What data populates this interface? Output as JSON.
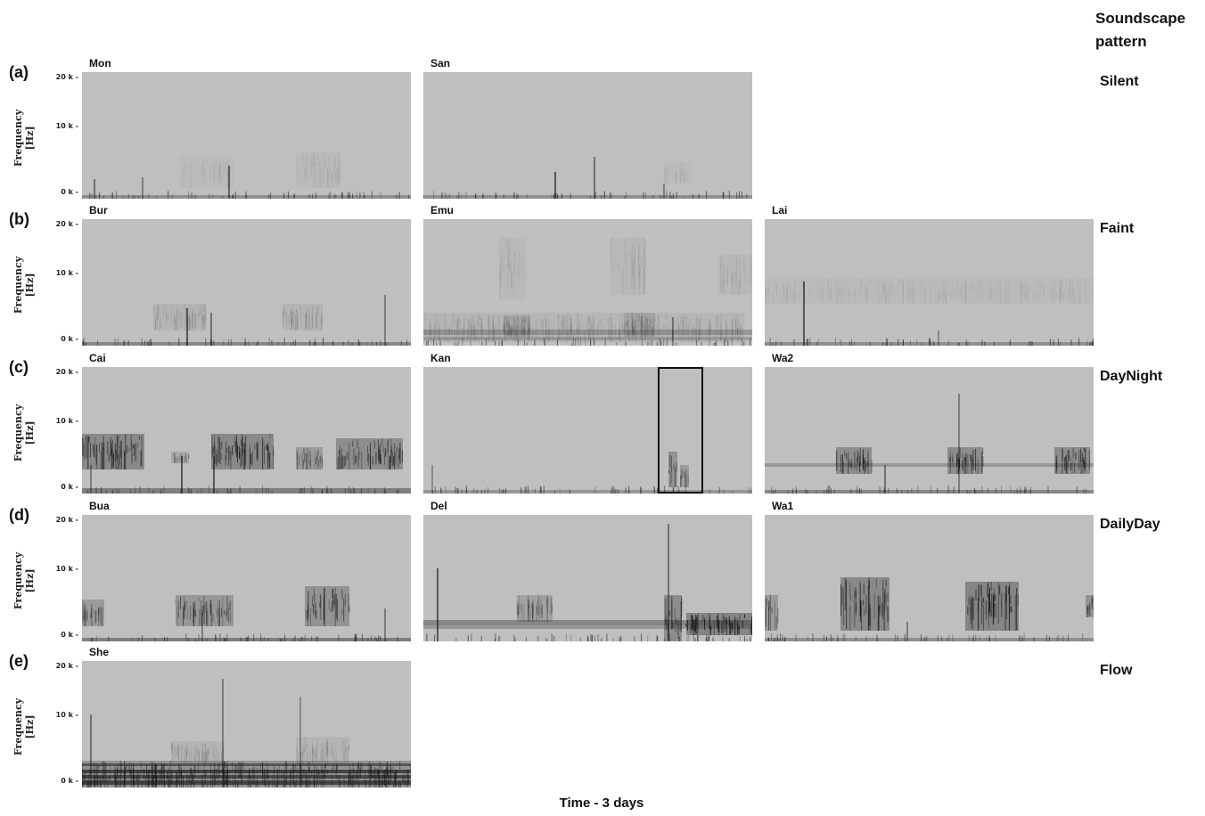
{
  "figure": {
    "header": "Soundscape pattern",
    "x_label": "Time - 3 days",
    "y_label_line1": "Frequency",
    "y_label_line2": "[Hz]",
    "tick_labels": [
      "20 k",
      "10 k",
      "0 k"
    ],
    "rows": [
      {
        "letter": "(a)",
        "pattern": "Silent",
        "panels": [
          {
            "name": "Mon",
            "col": 0,
            "profile": "silent1"
          },
          {
            "name": "San",
            "col": 1,
            "profile": "silent2"
          }
        ]
      },
      {
        "letter": "(b)",
        "pattern": "Faint",
        "panels": [
          {
            "name": "Bur",
            "col": 0,
            "profile": "faint1"
          },
          {
            "name": "Emu",
            "col": 1,
            "profile": "faint2"
          },
          {
            "name": "Lai",
            "col": 2,
            "profile": "faint3"
          }
        ]
      },
      {
        "letter": "(c)",
        "pattern": "DayNight",
        "panels": [
          {
            "name": "Cai",
            "col": 0,
            "profile": "daynight1"
          },
          {
            "name": "Kan",
            "col": 1,
            "profile": "daynight2",
            "highlight": true
          },
          {
            "name": "Wa2",
            "col": 2,
            "profile": "daynight3"
          }
        ]
      },
      {
        "letter": "(d)",
        "pattern": "DailyDay",
        "panels": [
          {
            "name": "Bua",
            "col": 0,
            "profile": "daily1"
          },
          {
            "name": "Del",
            "col": 1,
            "profile": "daily2"
          },
          {
            "name": "Wa1",
            "col": 2,
            "profile": "daily3"
          }
        ]
      },
      {
        "letter": "(e)",
        "pattern": "Flow",
        "panels": [
          {
            "name": "She",
            "col": 0,
            "profile": "flow1"
          }
        ]
      }
    ]
  }
}
